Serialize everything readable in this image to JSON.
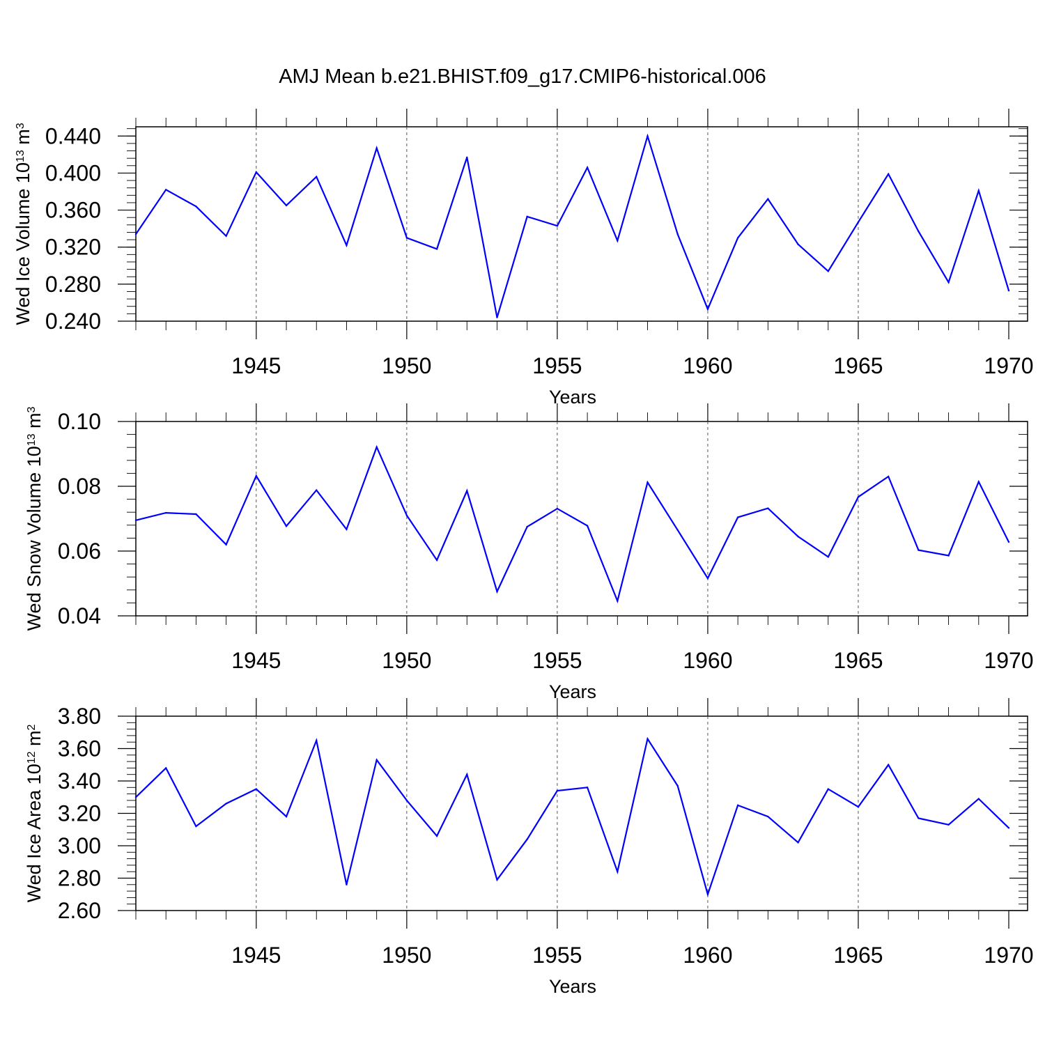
{
  "title": "AMJ Mean b.e21.BHIST.f09_g17.CMIP6-historical.006",
  "line_color": "#0000ff",
  "chart_data": [
    {
      "type": "line",
      "ylabel_main": "Wed Ice Volume 10",
      "ylabel_exp": "13",
      "ylabel_unit": " m",
      "ylabel_unit_exp": "3",
      "xlabel": "Years",
      "xlim": [
        1941,
        1970
      ],
      "ylim": [
        0.24,
        0.45
      ],
      "xticks": [
        1945,
        1950,
        1955,
        1960,
        1965,
        1970
      ],
      "xtick_labels": [
        "1945",
        "1950",
        "1955",
        "1960",
        "1965",
        "1970"
      ],
      "yticks": [
        0.24,
        0.28,
        0.32,
        0.36,
        0.4,
        0.44
      ],
      "ytick_labels": [
        "0.240",
        "0.280",
        "0.320",
        "0.360",
        "0.400",
        "0.440"
      ],
      "yminor_step": 0.008,
      "grid": "x-dashed",
      "x": [
        1941,
        1942,
        1943,
        1944,
        1945,
        1946,
        1947,
        1948,
        1949,
        1950,
        1951,
        1952,
        1953,
        1954,
        1955,
        1956,
        1957,
        1958,
        1959,
        1960,
        1961,
        1962,
        1963,
        1964,
        1965,
        1966,
        1967,
        1968,
        1969,
        1970
      ],
      "values": [
        0.334,
        0.382,
        0.364,
        0.332,
        0.401,
        0.365,
        0.396,
        0.322,
        0.427,
        0.33,
        0.318,
        0.417,
        0.244,
        0.353,
        0.343,
        0.406,
        0.327,
        0.44,
        0.334,
        0.253,
        0.33,
        0.372,
        0.323,
        0.294,
        0.347,
        0.399,
        0.337,
        0.282,
        0.381,
        0.273
      ]
    },
    {
      "type": "line",
      "ylabel_main": "Wed Snow Volume 10",
      "ylabel_exp": "13",
      "ylabel_unit": " m",
      "ylabel_unit_exp": "3",
      "xlabel": "Years",
      "xlim": [
        1941,
        1970
      ],
      "ylim": [
        0.04,
        0.1
      ],
      "xticks": [
        1945,
        1950,
        1955,
        1960,
        1965,
        1970
      ],
      "xtick_labels": [
        "1945",
        "1950",
        "1955",
        "1960",
        "1965",
        "1970"
      ],
      "yticks": [
        0.04,
        0.06,
        0.08,
        0.1
      ],
      "ytick_labels": [
        "0.04",
        "0.06",
        "0.08",
        "0.10"
      ],
      "yminor_step": 0.004,
      "grid": "x-dashed",
      "x": [
        1941,
        1942,
        1943,
        1944,
        1945,
        1946,
        1947,
        1948,
        1949,
        1950,
        1951,
        1952,
        1953,
        1954,
        1955,
        1956,
        1957,
        1958,
        1959,
        1960,
        1961,
        1962,
        1963,
        1964,
        1965,
        1966,
        1967,
        1968,
        1969,
        1970
      ],
      "values": [
        0.0695,
        0.0718,
        0.0714,
        0.062,
        0.0832,
        0.0677,
        0.0788,
        0.0667,
        0.0921,
        0.071,
        0.0572,
        0.0786,
        0.0475,
        0.0675,
        0.0731,
        0.0678,
        0.0446,
        0.0812,
        0.0665,
        0.0516,
        0.0704,
        0.0732,
        0.0645,
        0.0582,
        0.0767,
        0.083,
        0.0603,
        0.0586,
        0.0814,
        0.0628
      ]
    },
    {
      "type": "line",
      "ylabel_main": "Wed Ice Area 10",
      "ylabel_exp": "12",
      "ylabel_unit": " m",
      "ylabel_unit_exp": "2",
      "xlabel": "Years",
      "xlim": [
        1941,
        1970
      ],
      "ylim": [
        2.6,
        3.8
      ],
      "xticks": [
        1945,
        1950,
        1955,
        1960,
        1965,
        1970
      ],
      "xtick_labels": [
        "1945",
        "1950",
        "1955",
        "1960",
        "1965",
        "1970"
      ],
      "yticks": [
        2.6,
        2.8,
        3.0,
        3.2,
        3.4,
        3.6,
        3.8
      ],
      "ytick_labels": [
        "2.60",
        "2.80",
        "3.00",
        "3.20",
        "3.40",
        "3.60",
        "3.80"
      ],
      "yminor_step": 0.04,
      "grid": "x-dashed",
      "x": [
        1941,
        1942,
        1943,
        1944,
        1945,
        1946,
        1947,
        1948,
        1949,
        1950,
        1951,
        1952,
        1953,
        1954,
        1955,
        1956,
        1957,
        1958,
        1959,
        1960,
        1961,
        1962,
        1963,
        1964,
        1965,
        1966,
        1967,
        1968,
        1969,
        1970
      ],
      "values": [
        3.3,
        3.48,
        3.12,
        3.26,
        3.35,
        3.18,
        3.65,
        2.76,
        3.53,
        3.28,
        3.06,
        3.44,
        2.79,
        3.04,
        3.34,
        3.36,
        2.84,
        3.66,
        3.37,
        2.7,
        3.25,
        3.18,
        3.02,
        3.35,
        3.24,
        3.5,
        3.17,
        3.13,
        3.29,
        3.11
      ]
    }
  ]
}
